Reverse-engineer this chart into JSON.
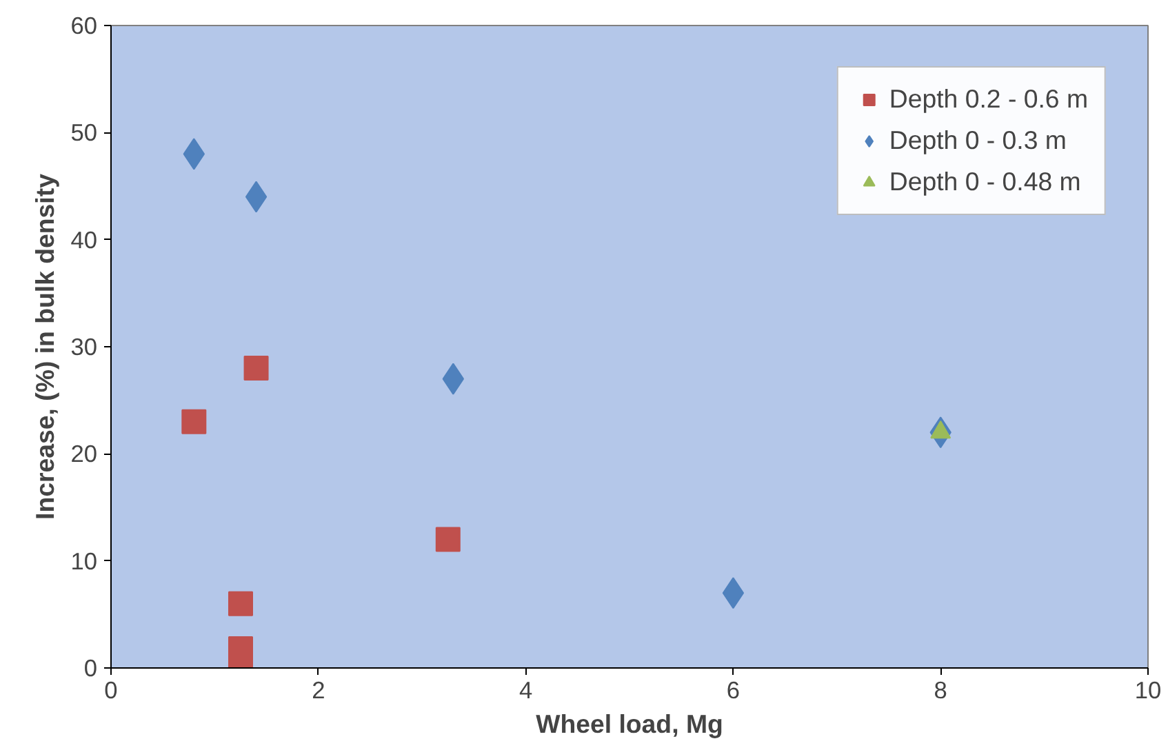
{
  "chart_data": {
    "type": "scatter",
    "xlabel": "Wheel load, Mg",
    "ylabel": "Increase, (%) in bulk density",
    "xlim": [
      0,
      10
    ],
    "xticks": [
      0,
      2,
      4,
      6,
      8,
      10
    ],
    "ylim": [
      0,
      60
    ],
    "yticks": [
      0,
      10,
      20,
      30,
      40,
      50,
      60
    ],
    "grid": false,
    "legend": "top right",
    "series": [
      {
        "name": "Depth 0.2 - 0.6 m",
        "color": "#c0504d",
        "marker": "square",
        "x": [
          0.8,
          1.4,
          3.25,
          1.25,
          1.25,
          1.25
        ],
        "values": [
          23,
          28,
          12,
          6,
          1.8,
          0
        ]
      },
      {
        "name": "Depth 0 - 0.3 m",
        "color": "#4f81bd",
        "marker": "diamond",
        "x": [
          0.8,
          1.4,
          3.3,
          6,
          8
        ],
        "values": [
          48,
          44,
          27,
          7,
          22
        ]
      },
      {
        "name": "Depth 0 - 0.48 m",
        "color": "#9bbb59",
        "marker": "triangle",
        "x": [
          8
        ],
        "values": [
          22
        ]
      }
    ]
  }
}
